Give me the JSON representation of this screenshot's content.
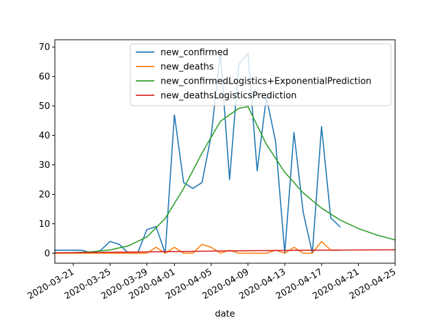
{
  "chart_data": {
    "type": "line",
    "title": "",
    "xlabel": "date",
    "ylabel": "",
    "x_ticks": [
      "2020-03-21",
      "2020-03-25",
      "2020-03-29",
      "2020-04-01",
      "2020-04-05",
      "2020-04-09",
      "2020-04-13",
      "2020-04-17",
      "2020-04-21",
      "2020-04-25"
    ],
    "y_ticks": [
      0,
      10,
      20,
      30,
      40,
      50,
      60,
      70
    ],
    "xlim": [
      "2020-03-19",
      "2020-04-25"
    ],
    "ylim": [
      -3.4,
      72.5
    ],
    "grid": false,
    "legend_position": "top-center",
    "series": [
      {
        "name": "new_confirmed",
        "color": "#1f77b4",
        "x": [
          "2020-03-19",
          "2020-03-20",
          "2020-03-21",
          "2020-03-22",
          "2020-03-23",
          "2020-03-24",
          "2020-03-25",
          "2020-03-26",
          "2020-03-27",
          "2020-03-28",
          "2020-03-29",
          "2020-03-30",
          "2020-03-31",
          "2020-04-01",
          "2020-04-02",
          "2020-04-03",
          "2020-04-04",
          "2020-04-05",
          "2020-04-06",
          "2020-04-07",
          "2020-04-08",
          "2020-04-09",
          "2020-04-10",
          "2020-04-11",
          "2020-04-12",
          "2020-04-13",
          "2020-04-14",
          "2020-04-15",
          "2020-04-16",
          "2020-04-17",
          "2020-04-18",
          "2020-04-19"
        ],
        "values": [
          1,
          1,
          1,
          1,
          0,
          1,
          4,
          3,
          0,
          0,
          8,
          9,
          0,
          47,
          24,
          22,
          24,
          40,
          68,
          25,
          64,
          68,
          28,
          53,
          38,
          0,
          41,
          14,
          0,
          43,
          12,
          9
        ]
      },
      {
        "name": "new_deaths",
        "color": "#ff7f0e",
        "x": [
          "2020-03-19",
          "2020-03-20",
          "2020-03-21",
          "2020-03-22",
          "2020-03-23",
          "2020-03-24",
          "2020-03-25",
          "2020-03-26",
          "2020-03-27",
          "2020-03-28",
          "2020-03-29",
          "2020-03-30",
          "2020-03-31",
          "2020-04-01",
          "2020-04-02",
          "2020-04-03",
          "2020-04-04",
          "2020-04-05",
          "2020-04-06",
          "2020-04-07",
          "2020-04-08",
          "2020-04-09",
          "2020-04-10",
          "2020-04-11",
          "2020-04-12",
          "2020-04-13",
          "2020-04-14",
          "2020-04-15",
          "2020-04-16",
          "2020-04-17",
          "2020-04-18",
          "2020-04-19"
        ],
        "values": [
          0,
          0,
          0,
          0,
          0,
          0,
          0,
          0,
          0,
          0,
          0,
          2,
          0,
          2,
          0,
          0,
          3,
          2,
          0,
          1,
          0,
          0,
          0,
          0,
          1,
          0,
          2,
          0,
          0,
          4,
          1,
          1
        ]
      },
      {
        "name": "new_confirmedLogistics+ExponentialPrediction",
        "color": "#2ca02c",
        "x": [
          "2020-03-19",
          "2020-03-21",
          "2020-03-23",
          "2020-03-25",
          "2020-03-27",
          "2020-03-29",
          "2020-03-31",
          "2020-04-02",
          "2020-04-04",
          "2020-04-06",
          "2020-04-08",
          "2020-04-09",
          "2020-04-11",
          "2020-04-13",
          "2020-04-15",
          "2020-04-17",
          "2020-04-19",
          "2020-04-21",
          "2020-04-23",
          "2020-04-25"
        ],
        "values": [
          0.1,
          0.2,
          0.5,
          1.1,
          2.5,
          5.5,
          11.8,
          22,
          34,
          44.8,
          49.2,
          49.8,
          37,
          27.5,
          20.5,
          15.3,
          11.3,
          8.4,
          6.2,
          4.5
        ]
      },
      {
        "name": "new_deathsLogisticsPrediction",
        "color": "#d62728",
        "x": [
          "2020-03-19",
          "2020-03-25",
          "2020-04-01",
          "2020-04-06",
          "2020-04-11",
          "2020-04-16",
          "2020-04-21",
          "2020-04-25"
        ],
        "values": [
          0.1,
          0.3,
          0.55,
          0.75,
          0.9,
          1.0,
          1.1,
          1.15
        ]
      }
    ]
  }
}
